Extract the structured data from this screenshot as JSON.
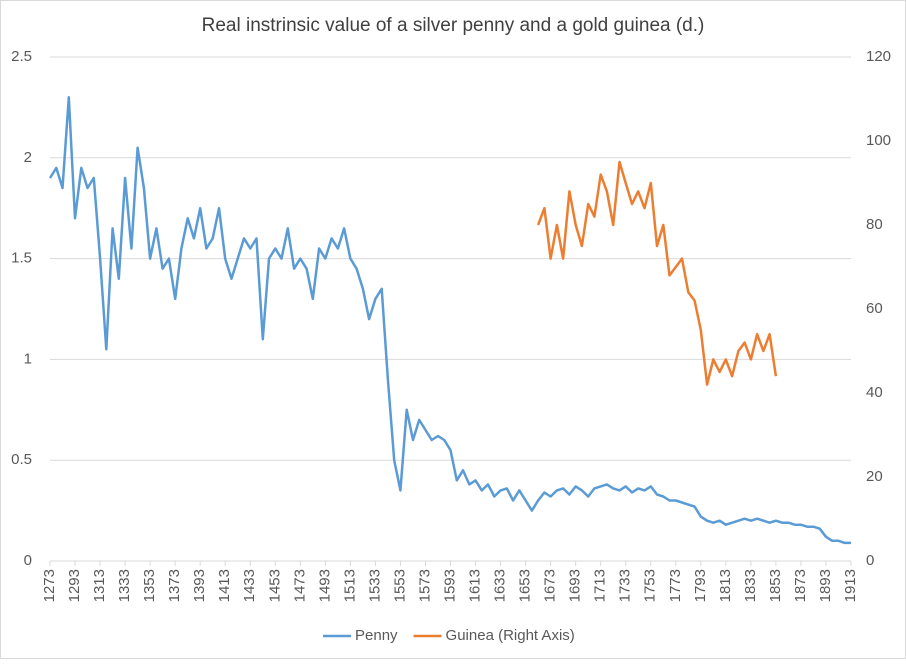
{
  "chart_data": {
    "type": "line",
    "title": "Real instrinsic value of a silver penny and a gold guinea (d.)",
    "x": [
      1273,
      1278,
      1283,
      1288,
      1293,
      1298,
      1303,
      1308,
      1313,
      1318,
      1323,
      1328,
      1333,
      1338,
      1343,
      1348,
      1353,
      1358,
      1363,
      1368,
      1373,
      1378,
      1383,
      1388,
      1393,
      1398,
      1403,
      1408,
      1413,
      1418,
      1423,
      1428,
      1433,
      1438,
      1443,
      1448,
      1453,
      1458,
      1463,
      1468,
      1473,
      1478,
      1483,
      1488,
      1493,
      1498,
      1503,
      1508,
      1513,
      1518,
      1523,
      1528,
      1533,
      1538,
      1543,
      1548,
      1553,
      1558,
      1563,
      1568,
      1573,
      1578,
      1583,
      1588,
      1593,
      1598,
      1603,
      1608,
      1613,
      1618,
      1623,
      1628,
      1633,
      1638,
      1643,
      1648,
      1653,
      1658,
      1663,
      1668,
      1673,
      1678,
      1683,
      1688,
      1693,
      1698,
      1703,
      1708,
      1713,
      1718,
      1723,
      1728,
      1733,
      1738,
      1743,
      1748,
      1753,
      1758,
      1763,
      1768,
      1773,
      1778,
      1783,
      1788,
      1793,
      1798,
      1803,
      1808,
      1813,
      1818,
      1823,
      1828,
      1833,
      1838,
      1843,
      1848,
      1853,
      1858,
      1863,
      1868,
      1873,
      1878,
      1883,
      1888,
      1893,
      1898,
      1903,
      1908,
      1913
    ],
    "xlim": [
      1273,
      1913
    ],
    "xticks": [
      1273,
      1293,
      1313,
      1333,
      1353,
      1373,
      1393,
      1413,
      1433,
      1453,
      1473,
      1493,
      1513,
      1533,
      1553,
      1573,
      1593,
      1613,
      1633,
      1653,
      1673,
      1693,
      1713,
      1733,
      1753,
      1773,
      1793,
      1813,
      1833,
      1853,
      1873,
      1893,
      1913
    ],
    "ylim": [
      0,
      2.5
    ],
    "yticks": [
      0,
      0.5,
      1,
      1.5,
      2,
      2.5
    ],
    "y2lim": [
      0,
      120
    ],
    "y2ticks": [
      0,
      20,
      40,
      60,
      80,
      100,
      120
    ],
    "grid": true,
    "legend": "bottom",
    "series": [
      {
        "name": "Penny",
        "color": "#5b9bd5",
        "values": [
          1.9,
          1.95,
          1.85,
          2.3,
          1.7,
          1.95,
          1.85,
          1.9,
          1.5,
          1.05,
          1.65,
          1.4,
          1.9,
          1.55,
          2.05,
          1.85,
          1.5,
          1.65,
          1.45,
          1.5,
          1.3,
          1.55,
          1.7,
          1.6,
          1.75,
          1.55,
          1.6,
          1.75,
          1.5,
          1.4,
          1.5,
          1.6,
          1.55,
          1.6,
          1.1,
          1.5,
          1.55,
          1.5,
          1.65,
          1.45,
          1.5,
          1.45,
          1.3,
          1.55,
          1.5,
          1.6,
          1.55,
          1.65,
          1.5,
          1.45,
          1.35,
          1.2,
          1.3,
          1.35,
          0.9,
          0.5,
          0.35,
          0.75,
          0.6,
          0.7,
          0.65,
          0.6,
          0.62,
          0.6,
          0.55,
          0.4,
          0.45,
          0.38,
          0.4,
          0.35,
          0.38,
          0.32,
          0.35,
          0.36,
          0.3,
          0.35,
          0.3,
          0.25,
          0.3,
          0.34,
          0.32,
          0.35,
          0.36,
          0.33,
          0.37,
          0.35,
          0.32,
          0.36,
          0.37,
          0.38,
          0.36,
          0.35,
          0.37,
          0.34,
          0.36,
          0.35,
          0.37,
          0.33,
          0.32,
          0.3,
          0.3,
          0.29,
          0.28,
          0.27,
          0.22,
          0.2,
          0.19,
          0.2,
          0.18,
          0.19,
          0.2,
          0.21,
          0.2,
          0.21,
          0.2,
          0.19,
          0.2,
          0.19,
          0.19,
          0.18,
          0.18,
          0.17,
          0.17,
          0.16,
          0.12,
          0.1,
          0.1,
          0.09,
          0.09
        ]
      },
      {
        "name": "Guinea (Right Axis)",
        "color": "#ed7d31",
        "axis": "y2",
        "values": [
          null,
          null,
          null,
          null,
          null,
          null,
          null,
          null,
          null,
          null,
          null,
          null,
          null,
          null,
          null,
          null,
          null,
          null,
          null,
          null,
          null,
          null,
          null,
          null,
          null,
          null,
          null,
          null,
          null,
          null,
          null,
          null,
          null,
          null,
          null,
          null,
          null,
          null,
          null,
          null,
          null,
          null,
          null,
          null,
          null,
          null,
          null,
          null,
          null,
          null,
          null,
          null,
          null,
          null,
          null,
          null,
          null,
          null,
          null,
          null,
          null,
          null,
          null,
          null,
          null,
          null,
          null,
          null,
          null,
          null,
          null,
          null,
          null,
          null,
          null,
          null,
          null,
          null,
          80,
          84,
          72,
          80,
          72,
          88,
          80,
          75,
          85,
          82,
          92,
          88,
          80,
          95,
          90,
          85,
          88,
          84,
          90,
          75,
          80,
          68,
          70,
          72,
          64,
          62,
          55,
          42,
          48,
          45,
          48,
          44,
          50,
          52,
          48,
          54,
          50,
          54,
          44,
          null,
          null,
          null,
          null,
          null,
          null,
          null,
          null,
          null,
          null,
          null,
          null
        ]
      }
    ]
  }
}
